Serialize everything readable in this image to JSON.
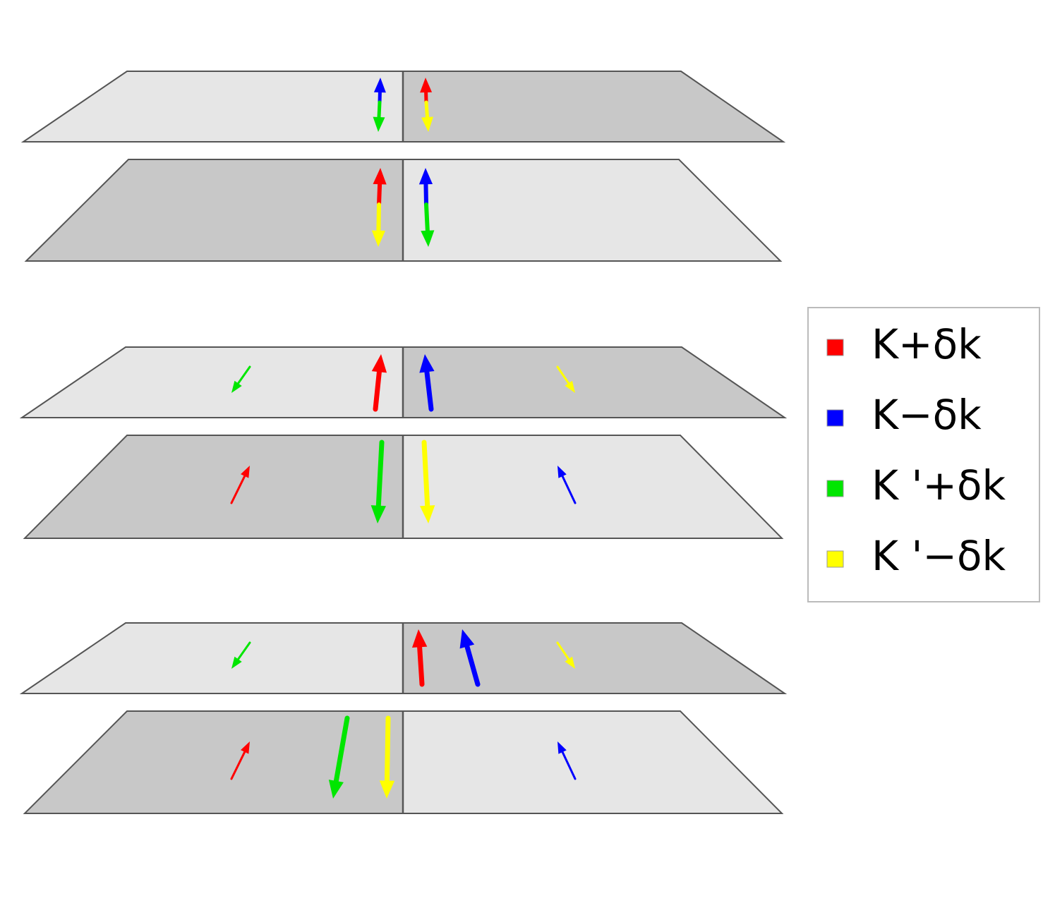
{
  "legend": {
    "items": [
      {
        "label": "K+δk",
        "color": "#ff0000"
      },
      {
        "label": "K−δk",
        "color": "#0000ff"
      },
      {
        "label": "K '+δk",
        "color": "#00e600"
      },
      {
        "label": "K '−δk",
        "color": "#ffff00"
      }
    ]
  }
}
